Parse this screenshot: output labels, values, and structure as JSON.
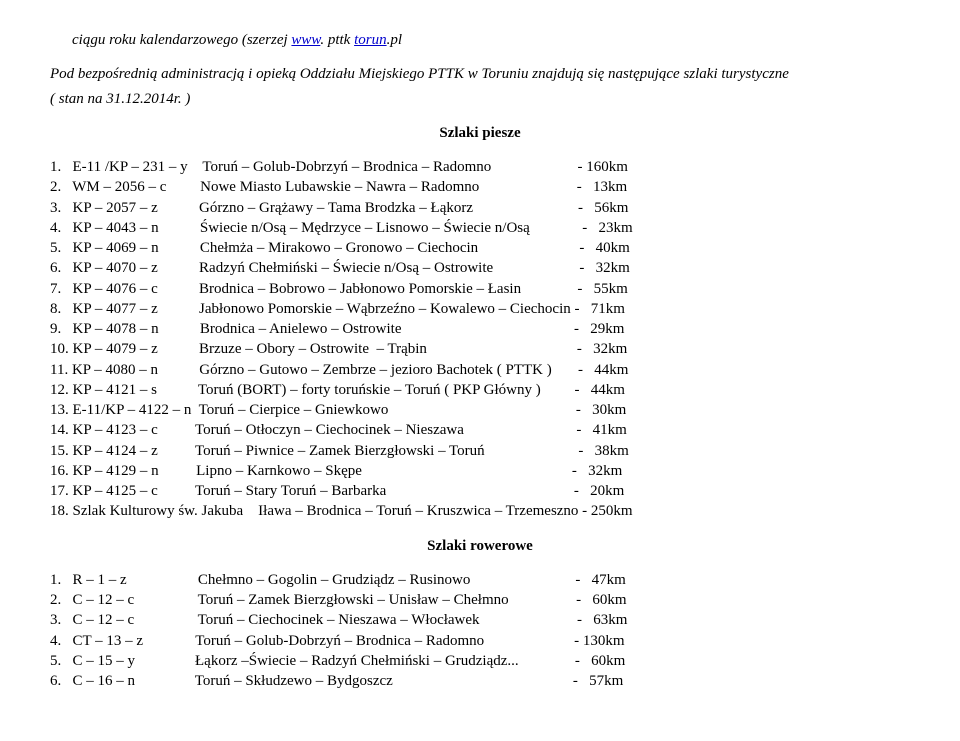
{
  "top_line_prefix": "ciągu roku kalendarzowego (szerzej ",
  "top_line_link1": "www",
  "top_line_mid": ". pttk ",
  "top_line_link2": "torun",
  "top_line_suffix": ".pl",
  "intro_line1": "Pod bezpośrednią administracją i opieką Oddziału Miejskiego PTTK w Toruniu  znajdują się następujące szlaki turystyczne",
  "intro_line2": "( stan na 31.12.2014r. )",
  "section1_title": "Szlaki  piesze",
  "piesze": [
    "1.   E-11 /KP – 231 – y    Toruń – Golub-Dobrzyń – Brodnica – Radomno                       - 160km",
    "2.   WM – 2056 – c         Nowe Miasto Lubawskie – Nawra – Radomno                          -   13km",
    "3.   KP – 2057 – z           Górzno – Grążawy – Tama Brodzka – Łąkorz                            -   56km",
    "4.   KP – 4043 – n           Świecie n/Osą – Mędrzyce – Lisnowo – Świecie n/Osą              -   23km",
    "5.   KP – 4069 – n           Chełmża – Mirakowo – Gronowo – Ciechocin                           -   40km",
    "6.   KP – 4070 – z           Radzyń Chełmiński – Świecie n/Osą – Ostrowite                       -   32km",
    "7.   KP – 4076 – c           Brodnica – Bobrowo – Jabłonowo Pomorskie – Łasin               -   55km",
    "8.   KP – 4077 – z           Jabłonowo Pomorskie – Wąbrzeźno – Kowalewo – Ciechocin -   71km",
    "9.   KP – 4078 – n           Brodnica – Anielewo – Ostrowite                                              -   29km",
    "10. KP – 4079 – z           Brzuze – Obory – Ostrowite  – Trąbin                                        -   32km",
    "11. KP – 4080 – n           Górzno – Gutowo – Zembrze – jezioro Bachotek ( PTTK )       -   44km",
    "12. KP – 4121 – s           Toruń (BORT) – forty toruńskie – Toruń ( PKP Główny )         -   44km",
    "13. E-11/KP – 4122 – n  Toruń – Cierpice – Gniewkowo                                                  -   30km",
    "14. KP – 4123 – c          Toruń – Otłoczyn – Ciechocinek – Nieszawa                              -   41km",
    "15. KP – 4124 – z          Toruń – Piwnice – Zamek Bierzgłowski – Toruń                         -   38km",
    "16. KP – 4129 – n          Lipno – Karnkowo – Skępe                                                        -   32km",
    "17. KP – 4125 – c          Toruń – Stary Toruń – Barbarka                                                  -   20km",
    "18. Szlak Kulturowy św. Jakuba    Iława – Brodnica – Toruń – Kruszwica – Trzemeszno - 250km"
  ],
  "section2_title": "Szlaki  rowerowe",
  "rowerowe": [
    "1.   R – 1 – z                   Chełmno – Gogolin – Grudziądz – Rusinowo                            -   47km",
    "2.   C – 12 – c                 Toruń – Zamek Bierzgłowski – Unisław – Chełmno                  -   60km",
    "3.   C – 12 – c                 Toruń – Ciechocinek – Nieszawa – Włocławek                          -   63km",
    "4.   CT – 13 – z              Toruń – Golub-Dobrzyń – Brodnica – Radomno                        - 130km",
    "5.   C – 15 – y                Łąkorz –Świecie – Radzyń Chełmiński – Grudziądz...               -   60km",
    "6.   C – 16 – n                Toruń – Skłudzewo – Bydgoszcz                                                -   57km"
  ]
}
